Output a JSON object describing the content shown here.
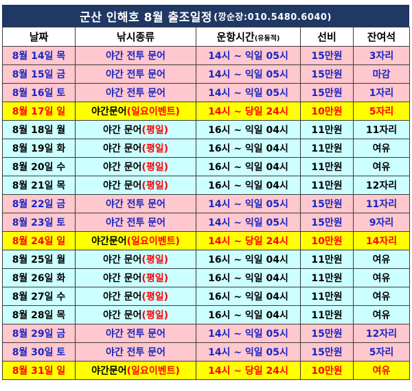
{
  "title": {
    "main": "군산 인해호 8월 출조일정",
    "contact": "(깡순장:010.5480.6040)"
  },
  "headers": {
    "date": "날짜",
    "type": "낚시종류",
    "time": "운항시간",
    "time_note": "(유동적)",
    "fee": "선비",
    "seats": "잔여석"
  },
  "rows": [
    {
      "theme": "pink",
      "date": "8월 14일 목",
      "type_main": "야간 전투 문어",
      "type_tag": "",
      "time": "14시 ~ 익일 05시",
      "fee": "15만원",
      "seats": "3자리"
    },
    {
      "theme": "pink",
      "date": "8월 15일 금",
      "type_main": "야간 전투 문어",
      "type_tag": "",
      "time": "14시 ~ 익일 05시",
      "fee": "15만원",
      "seats": "마감"
    },
    {
      "theme": "pink",
      "date": "8월 16일 토",
      "type_main": "야간 전투 문어",
      "type_tag": "",
      "time": "14시 ~ 익일 05시",
      "fee": "15만원",
      "seats": "1자리"
    },
    {
      "theme": "yellow",
      "date": "8월 17일 일",
      "type_main": "야간문어",
      "type_tag": "(일요이벤트)",
      "time": "14시 ~ 당일 24시",
      "fee": "10만원",
      "seats": "5자리"
    },
    {
      "theme": "cyan",
      "date": "8월 18일 월",
      "type_main": "야간 문어",
      "type_tag": "(평일)",
      "time": "16시 ~ 익일 04시",
      "fee": "11만원",
      "seats": "11자리"
    },
    {
      "theme": "cyan",
      "date": "8월 19일 화",
      "type_main": "야간 문어",
      "type_tag": "(평일)",
      "time": "16시 ~ 익일 04시",
      "fee": "11만원",
      "seats": "여유"
    },
    {
      "theme": "cyan",
      "date": "8월 20일 수",
      "type_main": "야간 문어",
      "type_tag": "(평일)",
      "time": "16시 ~ 익일 04시",
      "fee": "11만원",
      "seats": "여유"
    },
    {
      "theme": "cyan",
      "date": "8월 21일 목",
      "type_main": "야간 문어",
      "type_tag": "(평일)",
      "time": "16시 ~ 익일 04시",
      "fee": "11만원",
      "seats": "12자리"
    },
    {
      "theme": "pink",
      "date": "8월 22일 금",
      "type_main": "야간 전투 문어",
      "type_tag": "",
      "time": "14시 ~ 익일 05시",
      "fee": "15만원",
      "seats": "11자리"
    },
    {
      "theme": "pink",
      "date": "8월 23일 토",
      "type_main": "야간 전투 문어",
      "type_tag": "",
      "time": "14시 ~ 익일 05시",
      "fee": "15만원",
      "seats": "9자리"
    },
    {
      "theme": "yellow",
      "date": "8월 24일 일",
      "type_main": "야간문어",
      "type_tag": "(일요이벤트)",
      "time": "14시 ~ 당일 24시",
      "fee": "10만원",
      "seats": "14자리"
    },
    {
      "theme": "cyan",
      "date": "8월 25일 월",
      "type_main": "야간 문어",
      "type_tag": "(평일)",
      "time": "16시 ~ 익일 04시",
      "fee": "11만원",
      "seats": "여유"
    },
    {
      "theme": "cyan",
      "date": "8월 26일 화",
      "type_main": "야간 문어",
      "type_tag": "(평일)",
      "time": "16시 ~ 익일 04시",
      "fee": "11만원",
      "seats": "여유"
    },
    {
      "theme": "cyan",
      "date": "8월 27일 수",
      "type_main": "야간 문어",
      "type_tag": "(평일)",
      "time": "16시 ~ 익일 04시",
      "fee": "11만원",
      "seats": "여유"
    },
    {
      "theme": "cyan",
      "date": "8월 28일 목",
      "type_main": "야간 문어",
      "type_tag": "(평일)",
      "time": "16시 ~ 익일 04시",
      "fee": "11만원",
      "seats": "여유"
    },
    {
      "theme": "pink",
      "date": "8월 29일 금",
      "type_main": "야간 전투 문어",
      "type_tag": "",
      "time": "14시 ~ 익일 05시",
      "fee": "15만원",
      "seats": "12자리"
    },
    {
      "theme": "pink",
      "date": "8월 30일 토",
      "type_main": "야간 전투 문어",
      "type_tag": "",
      "time": "14시 ~ 익일 05시",
      "fee": "15만원",
      "seats": "5자리"
    },
    {
      "theme": "yellow",
      "date": "8월 31일 일",
      "type_main": "야간문어",
      "type_tag": "(일요이벤트)",
      "time": "14시 ~ 당일 24시",
      "fee": "10만원",
      "seats": "여유"
    }
  ],
  "colors": {
    "header_bg": "#1f3864",
    "weekend_row": "#ffc7ce",
    "weekday_row": "#ccffff",
    "sunday_event_row": "#ffff00",
    "blue_text": "#1a25c4",
    "red_text": "#ff0000"
  }
}
